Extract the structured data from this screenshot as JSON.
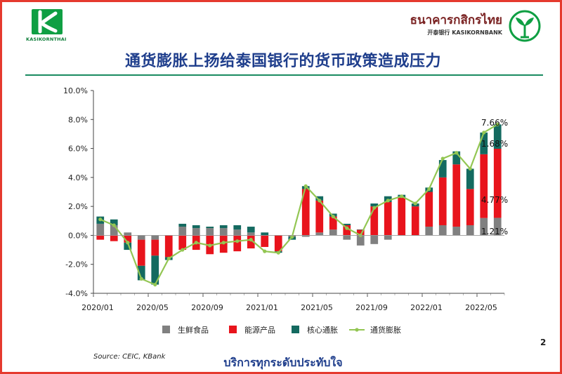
{
  "brand": {
    "left_logo_text": "KASIKORNTHAI",
    "right_logo_thai": "ธนาคารกสิกรไทย",
    "right_logo_en": "开泰银行 KASIKORNBANK"
  },
  "title": "通货膨胀上扬给泰国银行的货币政策造成压力",
  "source": "Source: CEIC, KBank",
  "footer": "บริการทุกระดับประทับใจ",
  "page_number": "2",
  "colors": {
    "fresh_food": "#808080",
    "energy": "#e8141c",
    "core": "#146a60",
    "inflation": "#93c653",
    "border": "#e53a2e",
    "title": "#1f3e8c"
  },
  "chart_data": {
    "type": "bar",
    "stacked": true,
    "categories": [
      "2020/01",
      "2020/02",
      "2020/03",
      "2020/04",
      "2020/05",
      "2020/06",
      "2020/07",
      "2020/08",
      "2020/09",
      "2020/10",
      "2020/11",
      "2020/12",
      "2021/01",
      "2021/02",
      "2021/03",
      "2021/04",
      "2021/05",
      "2021/06",
      "2021/07",
      "2021/08",
      "2021/09",
      "2021/10",
      "2021/11",
      "2021/12",
      "2022/01",
      "2022/02",
      "2022/03",
      "2022/04",
      "2022/05",
      "2022/06"
    ],
    "x_tick_labels": [
      "2020/01",
      "2020/05",
      "2020/09",
      "2021/01",
      "2021/05",
      "2021/09",
      "2022/01",
      "2022/05"
    ],
    "y_tick_labels": [
      "10.0%",
      "8.0%",
      "6.0%",
      "4.0%",
      "2.0%",
      "0.0%",
      "-2.0%",
      "-4.0%"
    ],
    "ylim": [
      -4.0,
      10.0
    ],
    "grid": false,
    "legend_position": "bottom",
    "series": [
      {
        "name": "生鲜食品",
        "kind": "bar",
        "values": [
          0.8,
          0.7,
          0.2,
          -0.3,
          -0.3,
          0.0,
          0.6,
          0.5,
          0.5,
          0.5,
          0.4,
          0.2,
          0.0,
          0.0,
          -0.1,
          -0.1,
          0.2,
          0.4,
          -0.3,
          -0.7,
          -0.6,
          -0.3,
          0.0,
          0.0,
          0.6,
          0.7,
          0.6,
          0.7,
          1.2,
          1.21
        ]
      },
      {
        "name": "能源产品",
        "kind": "bar",
        "values": [
          -0.3,
          -0.4,
          -0.5,
          -1.8,
          -1.1,
          -1.5,
          -1.0,
          -1.0,
          -1.3,
          -1.2,
          -1.1,
          -0.9,
          -0.8,
          -1.1,
          0.0,
          3.2,
          2.2,
          0.9,
          0.7,
          0.4,
          2.0,
          2.3,
          2.6,
          2.0,
          2.4,
          3.3,
          4.3,
          2.5,
          4.4,
          4.77
        ]
      },
      {
        "name": "核心通胀",
        "kind": "bar",
        "values": [
          0.5,
          0.4,
          -0.5,
          -1.0,
          -2.0,
          -0.2,
          0.2,
          0.2,
          0.1,
          0.2,
          0.3,
          0.4,
          0.2,
          -0.1,
          -0.2,
          0.2,
          0.3,
          0.2,
          0.1,
          0.0,
          0.2,
          0.4,
          0.2,
          0.2,
          0.3,
          1.2,
          0.9,
          1.4,
          1.5,
          1.68
        ]
      },
      {
        "name": "通货膨胀",
        "kind": "line",
        "values": [
          1.1,
          0.7,
          -0.5,
          -3.0,
          -3.4,
          -1.6,
          -1.0,
          -0.5,
          -0.7,
          -0.5,
          -0.4,
          -0.3,
          -1.1,
          -1.2,
          -0.1,
          3.4,
          2.4,
          1.3,
          0.5,
          0.0,
          1.9,
          2.4,
          2.7,
          2.2,
          3.2,
          5.3,
          5.7,
          4.6,
          7.1,
          7.66
        ]
      }
    ],
    "annotations": [
      "7.66%",
      "1.68%",
      "4.77%",
      "1.21%"
    ]
  }
}
